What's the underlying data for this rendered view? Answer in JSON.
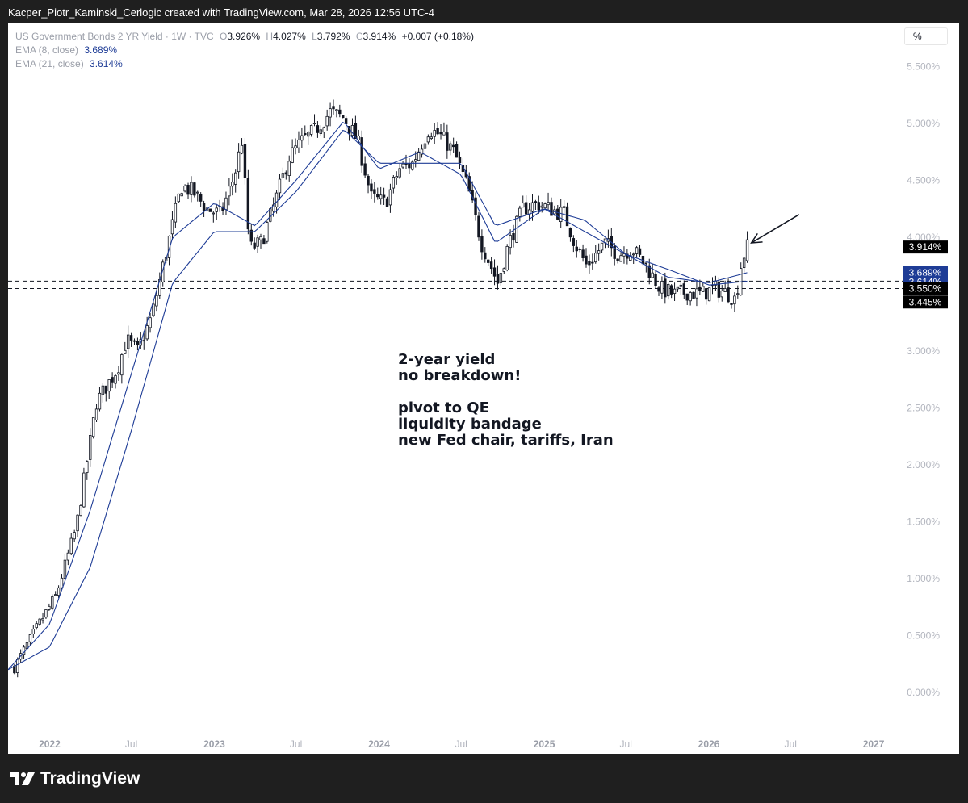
{
  "header": {
    "attribution": "Kacper_Piotr_Kaminski_Cerlogic created with TradingView.com, Mar 28, 2026 12:56 UTC-4"
  },
  "legend": {
    "symbol": "US Government Bonds 2 YR Yield · 1W · TVC",
    "o_label": "O",
    "o_value": "3.926%",
    "h_label": "H",
    "h_value": "4.027%",
    "l_label": "L",
    "l_value": "3.792%",
    "c_label": "C",
    "c_value": "3.914%",
    "change": "+0.007 (+0.18%)",
    "ema8_label": "EMA (8, close)",
    "ema8_value": "3.689%",
    "ema21_label": "EMA (21, close)",
    "ema21_value": "3.614%"
  },
  "scale_button": "%",
  "annotation": {
    "line1": "2-year yield",
    "line2": "no breakdown!",
    "line3": "pivot to QE",
    "line4": "liquidity bandage",
    "line5": "new Fed chair, tariffs, Iran"
  },
  "brand": {
    "name": "TradingView"
  },
  "colors": {
    "candle": "#131722",
    "ema": "#1e3c96",
    "price_tag_bg": "#000000",
    "ema_tag_bg": "#1e3c96",
    "axis_text": "#b2b5be"
  },
  "chart_data": {
    "type": "line",
    "series": [
      {
        "name": "US Government Bonds 2 YR Yield",
        "style": "candlestick",
        "x": [
          "2021-10-15",
          "2021-12-01",
          "2022-01-15",
          "2022-03-01",
          "2022-04-15",
          "2022-06-01",
          "2022-06-20",
          "2022-07-15",
          "2022-08-15",
          "2022-09-15",
          "2022-10-20",
          "2022-11-15",
          "2022-12-15",
          "2023-01-15",
          "2023-02-15",
          "2023-03-03",
          "2023-03-20",
          "2023-04-15",
          "2023-05-15",
          "2023-06-15",
          "2023-07-15",
          "2023-08-15",
          "2023-09-15",
          "2023-10-15",
          "2023-11-15",
          "2023-12-15",
          "2024-01-15",
          "2024-02-15",
          "2024-03-15",
          "2024-04-20",
          "2024-05-15",
          "2024-06-15",
          "2024-07-15",
          "2024-08-15",
          "2024-09-20",
          "2024-10-15",
          "2024-11-15",
          "2024-12-15",
          "2025-01-15",
          "2025-02-15",
          "2025-03-10",
          "2025-04-05",
          "2025-05-15",
          "2025-06-15",
          "2025-07-15",
          "2025-08-15",
          "2025-09-15",
          "2025-10-15",
          "2025-11-15",
          "2025-12-15",
          "2026-01-15",
          "2026-02-15",
          "2026-03-01",
          "2026-03-15",
          "2026-03-27"
        ],
        "y": [
          0.22,
          0.55,
          0.85,
          1.45,
          2.55,
          2.85,
          3.1,
          3.0,
          3.3,
          3.85,
          4.45,
          4.4,
          4.25,
          4.2,
          4.55,
          4.85,
          3.9,
          3.95,
          4.3,
          4.7,
          4.85,
          4.95,
          5.1,
          5.05,
          4.85,
          4.35,
          4.3,
          4.6,
          4.65,
          4.95,
          4.9,
          4.75,
          4.45,
          3.95,
          3.6,
          3.95,
          4.25,
          4.3,
          4.25,
          4.2,
          3.95,
          3.75,
          3.95,
          3.85,
          3.9,
          3.75,
          3.55,
          3.5,
          3.52,
          3.5,
          3.55,
          3.5,
          3.45,
          3.8,
          3.914
        ]
      },
      {
        "name": "EMA (8, close)",
        "x": [
          "2021-10-01",
          "2022-01-01",
          "2022-04-01",
          "2022-07-01",
          "2022-10-01",
          "2023-01-01",
          "2023-04-01",
          "2023-07-01",
          "2023-10-15",
          "2024-01-01",
          "2024-04-01",
          "2024-07-01",
          "2024-09-15",
          "2025-01-01",
          "2025-04-01",
          "2025-07-01",
          "2025-10-01",
          "2026-01-01",
          "2026-03-27"
        ],
        "y": [
          0.2,
          0.6,
          1.6,
          2.8,
          4.0,
          4.3,
          4.1,
          4.5,
          5.02,
          4.6,
          4.75,
          4.55,
          3.95,
          4.25,
          4.05,
          3.85,
          3.65,
          3.6,
          3.689
        ]
      },
      {
        "name": "EMA (21, close)",
        "x": [
          "2021-10-01",
          "2022-01-01",
          "2022-04-01",
          "2022-07-01",
          "2022-10-01",
          "2023-01-01",
          "2023-04-01",
          "2023-07-01",
          "2023-10-15",
          "2024-01-01",
          "2024-04-01",
          "2024-07-01",
          "2024-09-15",
          "2025-01-01",
          "2025-04-01",
          "2025-07-01",
          "2025-10-01",
          "2026-01-01",
          "2026-03-27"
        ],
        "y": [
          0.2,
          0.4,
          1.1,
          2.3,
          3.6,
          4.05,
          4.05,
          4.4,
          4.95,
          4.65,
          4.65,
          4.65,
          4.1,
          4.25,
          4.15,
          3.85,
          3.72,
          3.58,
          3.614
        ]
      }
    ],
    "xlim": [
      "2021-10-01",
      "2027-02-20"
    ],
    "ylim": [
      -0.2,
      5.75
    ],
    "y_ticks": [
      0.0,
      0.5,
      1.0,
      1.5,
      2.0,
      2.5,
      3.0,
      3.5,
      4.0,
      4.5,
      5.0,
      5.5
    ],
    "y_tick_labels": [
      "0.000%",
      "0.500%",
      "1.000%",
      "1.500%",
      "2.000%",
      "2.500%",
      "3.000%",
      "3.500%",
      "4.000%",
      "4.500%",
      "5.000%",
      "5.500%"
    ],
    "x_ticks": [
      "2022-01-01",
      "2022-07-01",
      "2023-01-01",
      "2023-07-01",
      "2024-01-01",
      "2024-07-01",
      "2025-01-01",
      "2025-07-01",
      "2026-01-01",
      "2026-07-01",
      "2027-01-01"
    ],
    "x_tick_labels": [
      "2022",
      "Jul",
      "2023",
      "Jul",
      "2024",
      "Jul",
      "2025",
      "Jul",
      "2026",
      "Jul",
      "2027"
    ],
    "x_tick_bold": [
      true,
      false,
      true,
      false,
      true,
      false,
      true,
      false,
      true,
      false,
      true
    ],
    "horizontal_lines": [
      {
        "y": 3.614,
        "style": "dashed"
      },
      {
        "y": 3.55,
        "style": "dashed"
      }
    ],
    "price_tags": [
      {
        "y": 3.914,
        "label": "3.914%",
        "kind": "price"
      },
      {
        "y": 3.689,
        "label": "3.689%",
        "kind": "ema"
      },
      {
        "y": 3.614,
        "label": "3.614%",
        "kind": "ema"
      },
      {
        "y": 3.55,
        "label": "3.550%",
        "kind": "price"
      },
      {
        "y": 3.445,
        "label": "3.445%",
        "kind": "price"
      }
    ],
    "arrow": {
      "from": [
        "2026-07-20",
        4.2
      ],
      "to": [
        "2026-04-05",
        3.95
      ]
    },
    "grid": false,
    "log_scale": false
  }
}
